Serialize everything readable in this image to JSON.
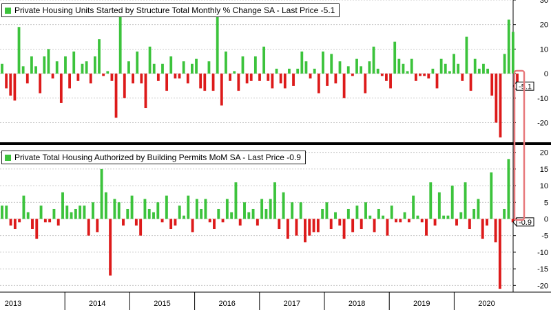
{
  "colors": {
    "up": "#3cc33c",
    "down": "#dd1a1a",
    "highlight": "#e8797c",
    "grid": "#b8b8b8",
    "divider": "#000000"
  },
  "chart_data": [
    {
      "type": "bar",
      "title": "Private Housing Units Started by Structure Total Monthly % Change SA - Last Price -5.1",
      "last_price_label": "-5.1",
      "ylim": [
        -28,
        30
      ],
      "yticks": [
        30,
        20,
        10,
        0,
        -10,
        -20
      ],
      "grid": true,
      "legend": "top-left",
      "values": [
        4,
        -6,
        -9,
        -11,
        19,
        3,
        -4,
        7,
        3,
        -8,
        7,
        10,
        -2,
        5,
        -12,
        7,
        -6,
        9,
        -3,
        4,
        5,
        -4,
        7,
        14,
        -1,
        1,
        -3,
        -18,
        24,
        -10,
        5,
        -4,
        9,
        -4,
        -14,
        11,
        4,
        -3,
        4,
        -7,
        7,
        -2,
        -2,
        5,
        -4,
        4,
        6,
        -6,
        -7,
        5,
        -7,
        23,
        -13,
        9,
        -3,
        1,
        -7,
        7,
        -4,
        -3,
        7,
        -3,
        11,
        -3,
        -6,
        2,
        -4,
        -6,
        2,
        -5,
        2,
        9,
        5,
        -2,
        2,
        -8,
        9,
        -5,
        8,
        -4,
        5,
        -10,
        3,
        -1,
        6,
        3,
        -8,
        5,
        11,
        2,
        -1,
        -3,
        -6,
        13,
        6,
        4,
        1,
        6,
        -3,
        -1,
        -1,
        -2,
        2,
        -6,
        6,
        4,
        1,
        8,
        4,
        -3,
        15,
        -7,
        6,
        2,
        4,
        2,
        -9,
        -20,
        -26,
        8,
        22,
        17,
        -5.1
      ]
    },
    {
      "type": "bar",
      "title": "Private Total Housing Authorized by Building Permits MoM SA - Last Price -0.9",
      "last_price_label": "-0.9",
      "ylim": [
        -22,
        22
      ],
      "yticks": [
        20,
        15,
        10,
        5,
        0,
        -5,
        -10,
        -15,
        -20
      ],
      "grid": true,
      "legend": "top-left",
      "values": [
        4,
        4,
        -2,
        -3,
        -1,
        7,
        2,
        -3,
        -6,
        4,
        -1,
        -1,
        3,
        -2,
        8,
        4,
        2,
        3,
        4,
        4,
        -5,
        5,
        -4,
        15,
        8,
        -17,
        6,
        5,
        -2,
        3,
        7,
        -2,
        -5,
        6,
        3,
        2,
        5,
        -1,
        7,
        -3,
        -2,
        4,
        1,
        7,
        -4,
        6,
        3,
        6,
        -1,
        -3,
        3,
        -1,
        6,
        2,
        11,
        -2,
        5,
        2,
        3,
        -2,
        6,
        3,
        6,
        11,
        -3,
        8,
        -6,
        5,
        -5,
        5,
        -7,
        -5,
        -4,
        -4,
        3,
        5,
        -3,
        2,
        -2,
        -6,
        3,
        -4,
        4,
        -3,
        5,
        1,
        -4,
        3,
        1,
        -5,
        4,
        -1,
        -1,
        2,
        -1,
        7,
        1,
        -1,
        -5,
        11,
        -2,
        8,
        1,
        1,
        10,
        -2,
        2,
        11,
        -3,
        3,
        6,
        -6,
        -2,
        14,
        -7,
        -21,
        3,
        18,
        -1,
        -0.9
      ]
    }
  ],
  "x_axis": {
    "years": [
      "2013",
      "2014",
      "2015",
      "2016",
      "2017",
      "2018",
      "2019",
      "2020"
    ]
  }
}
